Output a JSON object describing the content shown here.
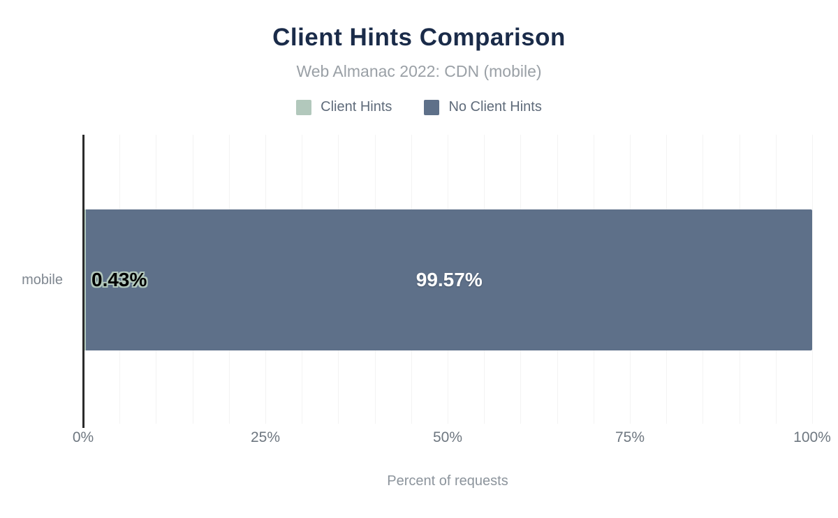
{
  "header": {
    "title": "Client Hints Comparison",
    "subtitle": "Web Almanac 2022: CDN (mobile)"
  },
  "legend": {
    "items": [
      {
        "label": "Client Hints",
        "color": "#b2c8bc"
      },
      {
        "label": "No Client Hints",
        "color": "#5e7089"
      }
    ]
  },
  "chart_data": {
    "type": "bar",
    "orientation": "horizontal",
    "stacked": true,
    "title": "Client Hints Comparison",
    "subtitle": "Web Almanac 2022: CDN (mobile)",
    "categories": [
      "mobile"
    ],
    "series": [
      {
        "name": "Client Hints",
        "values": [
          0.43
        ],
        "color": "#b2c8bc",
        "data_label": "0.43%"
      },
      {
        "name": "No Client Hints",
        "values": [
          99.57
        ],
        "color": "#5e7089",
        "data_label": "99.57%"
      }
    ],
    "xlabel": "Percent of requests",
    "ylabel": "",
    "xlim": [
      0,
      100
    ],
    "x_ticks": [
      "0%",
      "25%",
      "50%",
      "75%",
      "100%"
    ],
    "gridline_step_percent": 5,
    "grid": true,
    "legend_position": "top"
  },
  "colors": {
    "title": "#1a2b49",
    "subtitle": "#9aa0a6",
    "axis_line": "#2b2b2b",
    "gridline": "#f3f3f3",
    "background": "#ffffff"
  }
}
